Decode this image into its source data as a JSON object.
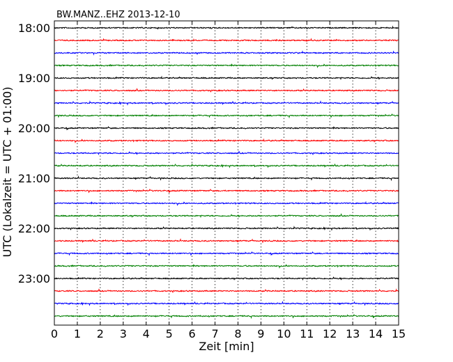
{
  "chart_data": {
    "type": "line",
    "title": "BW.MANZ..EHZ 2013-12-10",
    "xlabel": "Zeit  [min]",
    "ylabel": "UTC (Lokalzeit = UTC + 01:00)",
    "xlim": [
      0,
      15
    ],
    "x_ticks": [
      "0",
      "1",
      "2",
      "3",
      "4",
      "5",
      "6",
      "7",
      "8",
      "9",
      "10",
      "11",
      "12",
      "13",
      "14",
      "15"
    ],
    "y_tick_labels": [
      "18:00",
      "19:00",
      "20:00",
      "21:00",
      "22:00",
      "23:00"
    ],
    "grid": "vertical dotted",
    "trace_interval_minutes": 15,
    "first_trace": "18:00",
    "trace_count": 24,
    "trace_colors": [
      "#000000",
      "#ff0000",
      "#0000ff",
      "#008000"
    ]
  }
}
